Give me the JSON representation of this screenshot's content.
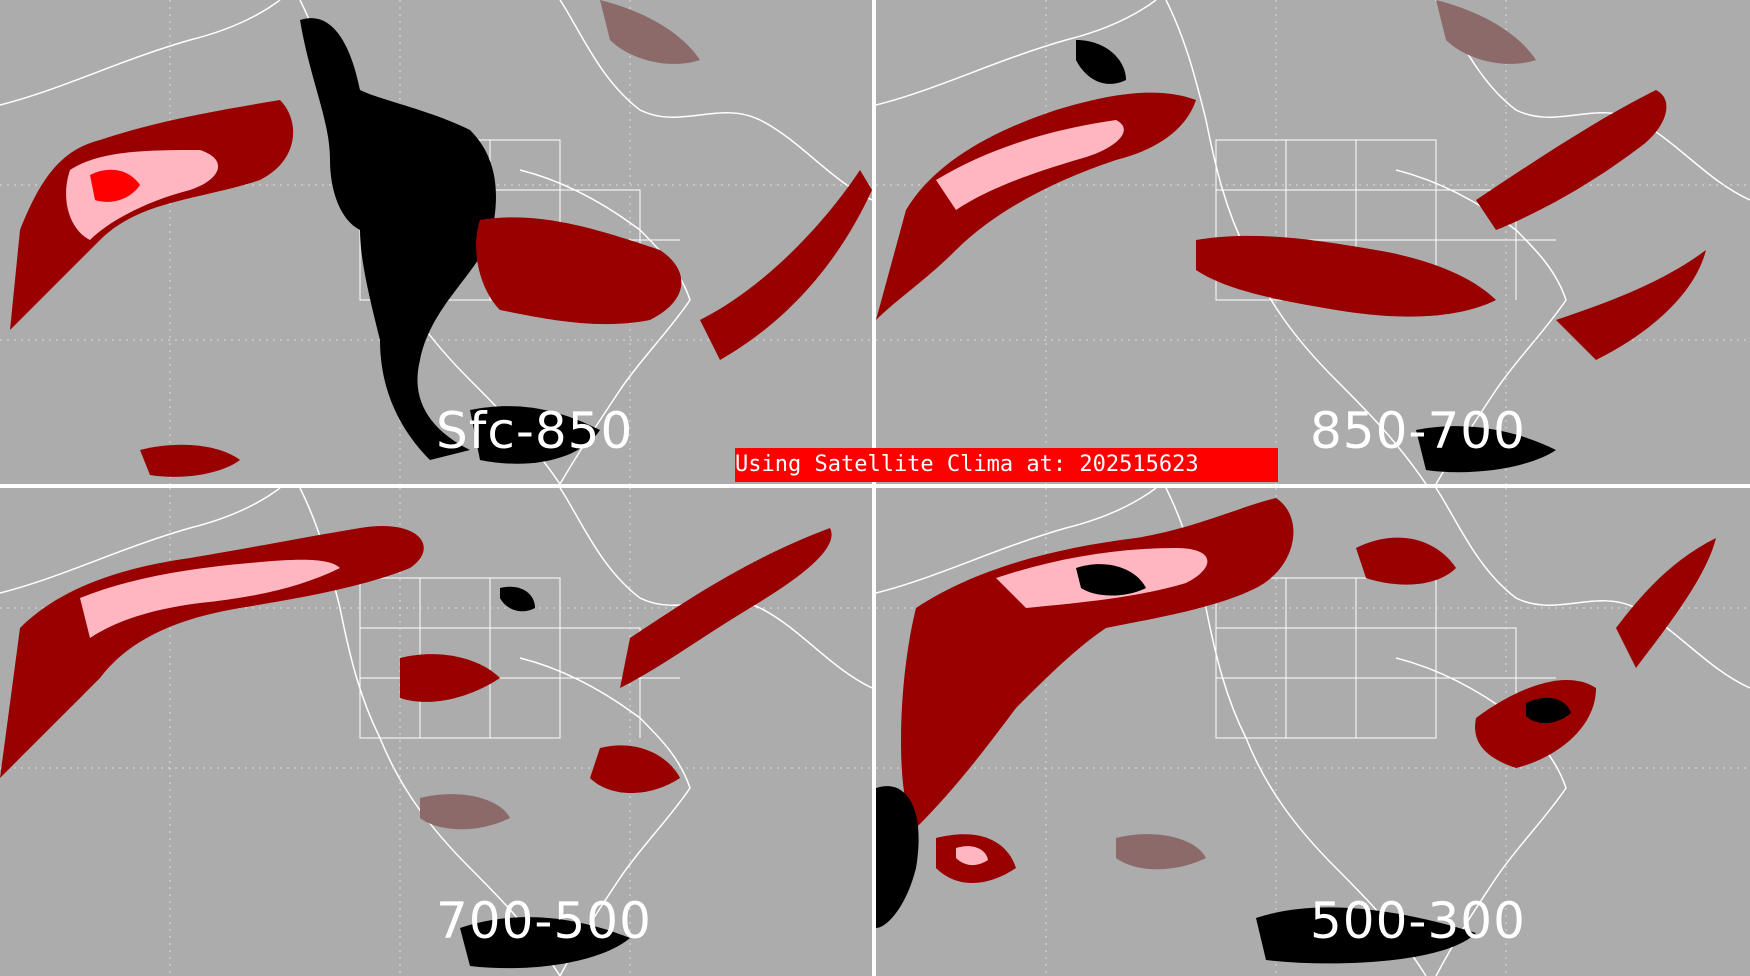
{
  "banner": {
    "text": "Using Satellite Clima at: 202515623"
  },
  "panels": [
    {
      "label": "Sfc-850"
    },
    {
      "label": "850-700"
    },
    {
      "label": "700-500"
    },
    {
      "label": "500-300"
    }
  ],
  "colors": {
    "background": "#acacac",
    "dark_red": "#990000",
    "bright_red": "#ff0000",
    "pink": "#ffb6c1",
    "grey_red": "#8c6a6a",
    "black": "#000000",
    "outline": "#ffffff"
  }
}
